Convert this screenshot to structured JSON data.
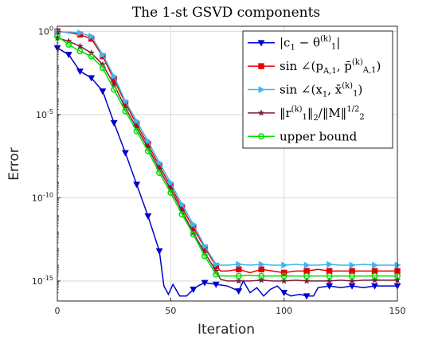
{
  "chart_data": {
    "type": "line",
    "title": "The 1-st GSVD components",
    "xlabel": "Iteration",
    "ylabel": "Error",
    "xlim": [
      0,
      150
    ],
    "ylim_log10": [
      -16.2,
      0.3
    ],
    "y_scale": "log",
    "grid": true,
    "legend_position": "top-right",
    "x_ticks": [
      "0",
      "50",
      "100",
      "150"
    ],
    "y_ticks": [
      {
        "base": "10",
        "exp": "0"
      },
      {
        "base": "10",
        "exp": "-5"
      },
      {
        "base": "10",
        "exp": "-10"
      },
      {
        "base": "10",
        "exp": "-15"
      }
    ],
    "series": [
      {
        "color": "#0000cc",
        "marker": "triangle-down",
        "legend": {
          "text": "|c",
          "sub": "1",
          "text2": " − θ",
          "sup": "(k)",
          "sub2": "1",
          "text3": "|"
        },
        "points": [
          [
            0,
            -1.0
          ],
          [
            5,
            -1.4
          ],
          [
            10,
            -2.4
          ],
          [
            15,
            -2.8
          ],
          [
            20,
            -3.6
          ],
          [
            25,
            -5.5
          ],
          [
            30,
            -7.3
          ],
          [
            35,
            -9.2
          ],
          [
            40,
            -11.1
          ],
          [
            45,
            -13.2
          ],
          [
            47,
            -15.3
          ],
          [
            49,
            -15.8
          ],
          [
            51,
            -15.2
          ],
          [
            54,
            -15.9
          ],
          [
            57,
            -15.9
          ],
          [
            60,
            -15.5
          ],
          [
            62,
            -15.3
          ],
          [
            65,
            -15.1
          ],
          [
            70,
            -15.2
          ],
          [
            75,
            -15.3
          ],
          [
            80,
            -15.6
          ],
          [
            82,
            -15.0
          ],
          [
            85,
            -15.7
          ],
          [
            88,
            -15.4
          ],
          [
            91,
            -15.9
          ],
          [
            94,
            -15.5
          ],
          [
            97,
            -15.3
          ],
          [
            100,
            -15.7
          ],
          [
            103,
            -15.9
          ],
          [
            107,
            -15.8
          ],
          [
            110,
            -15.9
          ],
          [
            113,
            -15.9
          ],
          [
            115,
            -15.4
          ],
          [
            120,
            -15.3
          ],
          [
            125,
            -15.4
          ],
          [
            130,
            -15.3
          ],
          [
            135,
            -15.4
          ],
          [
            140,
            -15.3
          ],
          [
            145,
            -15.3
          ],
          [
            150,
            -15.3
          ]
        ]
      },
      {
        "color": "#e60000",
        "marker": "square",
        "legend": {
          "text": "sin ∠(p",
          "sub": "A,1",
          "text2": ", p̄",
          "sup": "(k)",
          "sub2": "A,1",
          "text3": ")"
        },
        "points": [
          [
            0,
            0
          ],
          [
            3,
            -0.05
          ],
          [
            6,
            -0.1
          ],
          [
            10,
            -0.2
          ],
          [
            15,
            -0.45
          ],
          [
            20,
            -1.5
          ],
          [
            25,
            -2.9
          ],
          [
            30,
            -4.3
          ],
          [
            35,
            -5.6
          ],
          [
            40,
            -6.8
          ],
          [
            45,
            -8.1
          ],
          [
            50,
            -9.3
          ],
          [
            55,
            -10.6
          ],
          [
            60,
            -11.8
          ],
          [
            65,
            -13.0
          ],
          [
            70,
            -14.1
          ],
          [
            72,
            -14.4
          ],
          [
            75,
            -14.4
          ],
          [
            80,
            -14.3
          ],
          [
            85,
            -14.5
          ],
          [
            90,
            -14.3
          ],
          [
            95,
            -14.4
          ],
          [
            100,
            -14.5
          ],
          [
            105,
            -14.4
          ],
          [
            110,
            -14.4
          ],
          [
            115,
            -14.3
          ],
          [
            120,
            -14.4
          ],
          [
            125,
            -14.4
          ],
          [
            130,
            -14.4
          ],
          [
            135,
            -14.4
          ],
          [
            140,
            -14.4
          ],
          [
            145,
            -14.4
          ],
          [
            150,
            -14.4
          ]
        ]
      },
      {
        "color": "#3fb6f0",
        "marker": "triangle-right",
        "legend": {
          "text": "sin ∠(x",
          "sub": "1",
          "text2": ", x̄",
          "sup": "(k)",
          "sub2": "1",
          "text3": ")"
        },
        "points": [
          [
            0,
            0
          ],
          [
            3,
            -0.05
          ],
          [
            6,
            -0.05
          ],
          [
            10,
            -0.1
          ],
          [
            15,
            -0.3
          ],
          [
            20,
            -1.4
          ],
          [
            25,
            -2.7
          ],
          [
            30,
            -4.2
          ],
          [
            35,
            -5.4
          ],
          [
            40,
            -6.6
          ],
          [
            45,
            -7.9
          ],
          [
            50,
            -9.1
          ],
          [
            55,
            -10.4
          ],
          [
            60,
            -11.6
          ],
          [
            65,
            -12.9
          ],
          [
            70,
            -14.0
          ],
          [
            72,
            -14.05
          ],
          [
            75,
            -14.05
          ],
          [
            80,
            -14.0
          ],
          [
            85,
            -14.05
          ],
          [
            90,
            -14.0
          ],
          [
            95,
            -14.05
          ],
          [
            100,
            -14.05
          ],
          [
            105,
            -14.0
          ],
          [
            110,
            -14.05
          ],
          [
            115,
            -14.05
          ],
          [
            120,
            -14.0
          ],
          [
            125,
            -14.05
          ],
          [
            130,
            -14.05
          ],
          [
            135,
            -14.0
          ],
          [
            140,
            -14.05
          ],
          [
            145,
            -14.05
          ],
          [
            150,
            -14.05
          ]
        ]
      },
      {
        "color": "#7a1f3d",
        "marker": "star",
        "legend": {
          "text": "‖r",
          "sup": "(k)",
          "sub": "1",
          "text2": "‖",
          "sub2": "2",
          "text3": "/‖M‖",
          "sup2": "1/2",
          "sub3": "2"
        },
        "points": [
          [
            0,
            -0.4
          ],
          [
            5,
            -0.6
          ],
          [
            10,
            -0.9
          ],
          [
            15,
            -1.3
          ],
          [
            20,
            -2.0
          ],
          [
            25,
            -3.2
          ],
          [
            30,
            -4.6
          ],
          [
            35,
            -5.8
          ],
          [
            40,
            -7.0
          ],
          [
            45,
            -8.3
          ],
          [
            50,
            -9.5
          ],
          [
            55,
            -10.8
          ],
          [
            60,
            -12.1
          ],
          [
            65,
            -13.3
          ],
          [
            70,
            -14.4
          ],
          [
            72,
            -14.9
          ],
          [
            75,
            -15.0
          ],
          [
            80,
            -15.0
          ],
          [
            85,
            -15.0
          ],
          [
            90,
            -14.95
          ],
          [
            95,
            -15.0
          ],
          [
            100,
            -15.0
          ],
          [
            105,
            -14.95
          ],
          [
            110,
            -15.0
          ],
          [
            115,
            -15.0
          ],
          [
            120,
            -15.0
          ],
          [
            125,
            -14.95
          ],
          [
            130,
            -15.0
          ],
          [
            135,
            -14.95
          ],
          [
            140,
            -14.95
          ],
          [
            145,
            -14.95
          ],
          [
            150,
            -14.95
          ]
        ]
      },
      {
        "color": "#00dd00",
        "marker": "circle",
        "legend": {
          "text": "upper bound"
        },
        "points": [
          [
            0,
            -0.3
          ],
          [
            5,
            -0.8
          ],
          [
            10,
            -1.2
          ],
          [
            15,
            -1.5
          ],
          [
            20,
            -2.2
          ],
          [
            25,
            -3.5
          ],
          [
            30,
            -4.8
          ],
          [
            35,
            -6.0
          ],
          [
            40,
            -7.2
          ],
          [
            45,
            -8.5
          ],
          [
            50,
            -9.7
          ],
          [
            55,
            -11.0
          ],
          [
            60,
            -12.2
          ],
          [
            65,
            -13.5
          ],
          [
            70,
            -14.6
          ],
          [
            72,
            -14.7
          ],
          [
            75,
            -14.7
          ],
          [
            80,
            -14.7
          ],
          [
            85,
            -14.65
          ],
          [
            90,
            -14.7
          ],
          [
            95,
            -14.7
          ],
          [
            100,
            -14.7
          ],
          [
            105,
            -14.7
          ],
          [
            110,
            -14.7
          ],
          [
            115,
            -14.7
          ],
          [
            120,
            -14.7
          ],
          [
            125,
            -14.7
          ],
          [
            130,
            -14.7
          ],
          [
            135,
            -14.7
          ],
          [
            140,
            -14.7
          ],
          [
            145,
            -14.7
          ],
          [
            150,
            -14.7
          ]
        ]
      }
    ]
  }
}
